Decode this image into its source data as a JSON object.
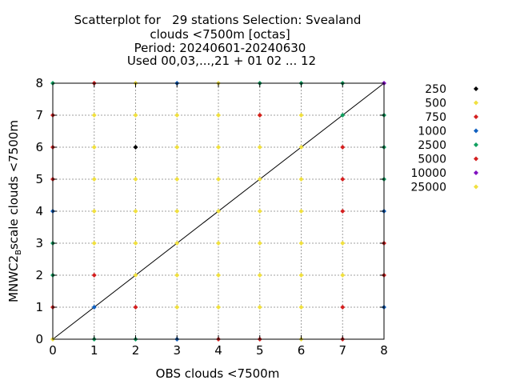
{
  "chart_data": {
    "type": "scatter",
    "title_lines": [
      "Scatterplot for   29 stations Selection: Svealand",
      "clouds <7500m [octas]",
      "Period: 20240601-20240630",
      "Used 00,03,...,21 + 01 02 ... 12"
    ],
    "xlabel": "OBS clouds <7500m",
    "ylabel_main": "MNWC2",
    "ylabel_sub": "B",
    "ylabel_tail": "scale clouds <7500m",
    "xlim": [
      0,
      8
    ],
    "ylim": [
      0,
      8
    ],
    "x_ticks": [
      "0",
      "1",
      "2",
      "3",
      "4",
      "5",
      "6",
      "7",
      "8"
    ],
    "y_ticks": [
      "0",
      "1",
      "2",
      "3",
      "4",
      "5",
      "6",
      "7",
      "8"
    ],
    "grid": true,
    "legend_position": "right",
    "diagonal": true,
    "series": [
      {
        "name": "250",
        "color": "#000000",
        "points": [
          [
            2,
            6
          ]
        ]
      },
      {
        "name": "500",
        "color": "#f0e040",
        "points": [
          [
            0,
            0
          ],
          [
            2,
            8
          ],
          [
            4,
            8
          ],
          [
            1,
            7
          ],
          [
            2,
            7
          ],
          [
            3,
            7
          ],
          [
            4,
            7
          ],
          [
            5,
            7
          ],
          [
            6,
            7
          ],
          [
            1,
            6
          ],
          [
            3,
            6
          ],
          [
            4,
            6
          ],
          [
            5,
            6
          ],
          [
            6,
            6
          ],
          [
            1,
            5
          ],
          [
            2,
            5
          ],
          [
            3,
            5
          ],
          [
            4,
            5
          ],
          [
            5,
            5
          ],
          [
            6,
            5
          ],
          [
            1,
            4
          ],
          [
            2,
            4
          ],
          [
            3,
            4
          ],
          [
            4,
            4
          ],
          [
            5,
            4
          ],
          [
            6,
            4
          ],
          [
            1,
            3
          ],
          [
            2,
            3
          ],
          [
            3,
            3
          ],
          [
            4,
            3
          ],
          [
            5,
            3
          ],
          [
            6,
            3
          ],
          [
            7,
            3
          ],
          [
            2,
            2
          ],
          [
            3,
            2
          ],
          [
            4,
            2
          ],
          [
            5,
            2
          ],
          [
            6,
            2
          ],
          [
            7,
            2
          ],
          [
            3,
            1
          ],
          [
            4,
            1
          ],
          [
            5,
            1
          ],
          [
            6,
            1
          ],
          [
            6,
            0
          ]
        ]
      },
      {
        "name": "750",
        "color": "#d42020",
        "points": [
          [
            1,
            8
          ],
          [
            0,
            7
          ],
          [
            0,
            6
          ],
          [
            0,
            5
          ],
          [
            7,
            6
          ],
          [
            7,
            5
          ],
          [
            7,
            4
          ],
          [
            5,
            7
          ],
          [
            8,
            3
          ],
          [
            8,
            2
          ],
          [
            1,
            2
          ],
          [
            0,
            1
          ],
          [
            2,
            1
          ],
          [
            7,
            1
          ],
          [
            4,
            0
          ],
          [
            5,
            0
          ],
          [
            7,
            0
          ]
        ]
      },
      {
        "name": "1000",
        "color": "#1060c0",
        "points": [
          [
            3,
            8
          ],
          [
            0,
            4
          ],
          [
            8,
            4
          ],
          [
            1,
            1
          ],
          [
            8,
            1
          ],
          [
            3,
            0
          ]
        ]
      },
      {
        "name": "2500",
        "color": "#10a060",
        "points": [
          [
            0,
            8
          ],
          [
            5,
            8
          ],
          [
            6,
            8
          ],
          [
            7,
            8
          ],
          [
            7,
            7
          ],
          [
            8,
            7
          ],
          [
            8,
            6
          ],
          [
            8,
            5
          ],
          [
            0,
            3
          ],
          [
            0,
            2
          ],
          [
            1,
            0
          ],
          [
            2,
            0
          ]
        ]
      },
      {
        "name": "5000",
        "color": "#d42020",
        "points": []
      },
      {
        "name": "10000",
        "color": "#8010c0",
        "points": [
          [
            8,
            8
          ]
        ]
      },
      {
        "name": "25000",
        "color": "#f0e040",
        "points": []
      }
    ]
  }
}
